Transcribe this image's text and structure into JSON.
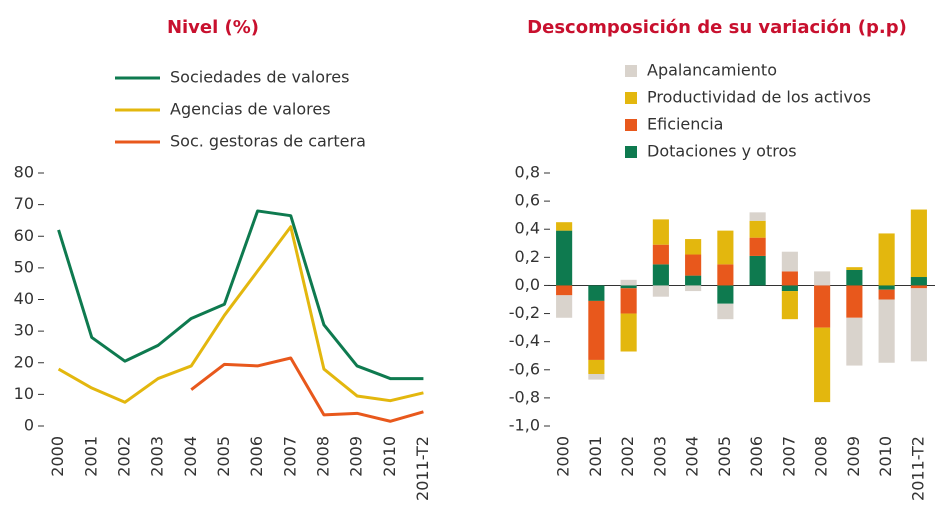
{
  "chart_data": [
    {
      "type": "line",
      "title": "Nivel (%)",
      "categories": [
        "2000",
        "2001",
        "2002",
        "2003",
        "2004",
        "2005",
        "2006",
        "2007",
        "2008",
        "2009",
        "2010",
        "2011-T2"
      ],
      "series": [
        {
          "name": "Sociedades de valores",
          "color": "#0e7a4f",
          "values": [
            62,
            28,
            20.5,
            25.5,
            34,
            38.5,
            68,
            66.5,
            32,
            19,
            15,
            15
          ]
        },
        {
          "name": "Agencias de valores",
          "color": "#e3b70e",
          "values": [
            18,
            12,
            7.5,
            15,
            19,
            35,
            49,
            63,
            18,
            9.5,
            8,
            10.5
          ]
        },
        {
          "name": "Soc. gestoras de cartera",
          "color": "#e8581c",
          "values": [
            null,
            null,
            null,
            null,
            11.5,
            19.5,
            19,
            21.5,
            3.5,
            4,
            1.5,
            4.5
          ]
        }
      ],
      "ylim": [
        0,
        80
      ],
      "yticks": [
        0,
        10,
        20,
        30,
        40,
        50,
        60,
        70,
        80
      ]
    },
    {
      "type": "stacked_bar",
      "title": "Descomposición de su variación (p.p)",
      "categories": [
        "2000",
        "2001",
        "2002",
        "2003",
        "2004",
        "2005",
        "2006",
        "2007",
        "2008",
        "2009",
        "2010",
        "2011-T2"
      ],
      "series": [
        {
          "name": "Apalancamiento",
          "color": "#d9d3cc",
          "values": [
            -0.16,
            -0.04,
            0.04,
            -0.08,
            -0.04,
            -0.11,
            0.06,
            0.14,
            0.1,
            -0.34,
            -0.45,
            -0.52
          ]
        },
        {
          "name": "Productividad de los activos",
          "color": "#e3b70e",
          "values": [
            0.06,
            -0.1,
            -0.27,
            0.18,
            0.11,
            0.24,
            0.12,
            -0.2,
            -0.53,
            0.02,
            0.37,
            0.48
          ]
        },
        {
          "name": "Eficiencia",
          "color": "#e8581c",
          "values": [
            -0.07,
            -0.42,
            -0.18,
            0.14,
            0.15,
            0.15,
            0.13,
            0.1,
            -0.3,
            -0.23,
            -0.07,
            -0.02
          ]
        },
        {
          "name": "Dotaciones y otros",
          "color": "#0e7a4f",
          "values": [
            0.39,
            -0.11,
            -0.02,
            0.15,
            0.07,
            -0.13,
            0.21,
            -0.04,
            0,
            0.11,
            -0.03,
            0.06
          ]
        }
      ],
      "ylim": [
        -1.0,
        0.8
      ],
      "yticks": [
        {
          "value": -1.0,
          "label": "-1,0"
        },
        {
          "value": -0.8,
          "label": "-0,8"
        },
        {
          "value": -0.6,
          "label": "-0,6"
        },
        {
          "value": -0.4,
          "label": "-0,4"
        },
        {
          "value": -0.2,
          "label": "-0,2"
        },
        {
          "value": 0,
          "label": "0,0"
        },
        {
          "value": 0.2,
          "label": "0,2"
        },
        {
          "value": 0.4,
          "label": "0,4"
        },
        {
          "value": 0.6,
          "label": "0,6"
        },
        {
          "value": 0.8,
          "label": "0,8"
        }
      ]
    }
  ]
}
